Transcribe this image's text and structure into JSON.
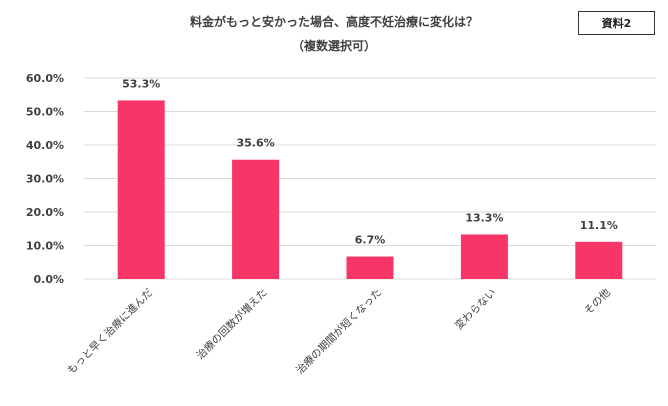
{
  "badge": "資料2",
  "chart_data": {
    "type": "bar",
    "title": "料金がもっと安かった場合、高度不妊治療に変化は？",
    "subtitle": "（複数選択可）",
    "categories": [
      "もっと早く治療に進んだ",
      "治療の回数が増えた",
      "治療の期間が短くなった",
      "変わらない",
      "その他"
    ],
    "values": [
      53.3,
      35.6,
      6.7,
      13.3,
      11.1
    ],
    "value_labels": [
      "53.3%",
      "35.6%",
      "6.7%",
      "13.3%",
      "11.1%"
    ],
    "y_ticks": [
      0,
      10,
      20,
      30,
      40,
      50,
      60
    ],
    "y_tick_labels": [
      "0.0%",
      "10.0%",
      "20.0%",
      "30.0%",
      "40.0%",
      "50.0%",
      "60.0%"
    ],
    "ylim": [
      0,
      60
    ],
    "grid": true,
    "bar_color": "#f73566",
    "grid_color": "#d9d9d9"
  }
}
